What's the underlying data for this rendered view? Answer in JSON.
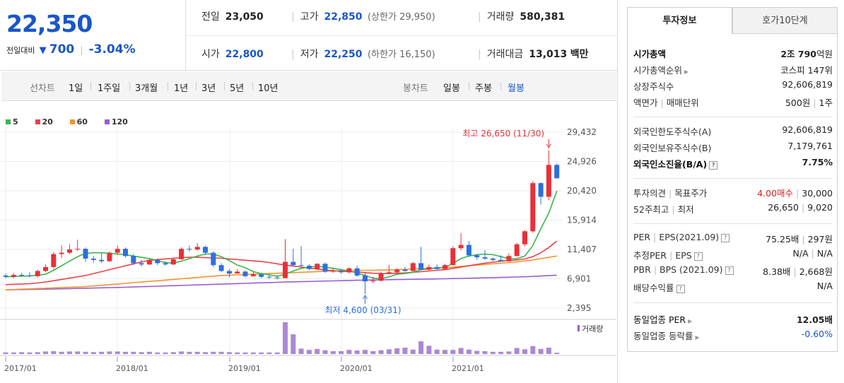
{
  "quote": {
    "price": "22,350",
    "change_label": "전일대비",
    "change_dir_icon": "down-triangle-icon",
    "change_amount": "700",
    "change_pct": "-3.04%",
    "prev_close": {
      "label": "전일",
      "value": "23,050"
    },
    "high": {
      "label": "고가",
      "value": "22,850",
      "limit_label": "상한가",
      "limit_value": "29,950"
    },
    "volume": {
      "label": "거래량",
      "value": "580,381"
    },
    "open": {
      "label": "시가",
      "value": "22,800"
    },
    "low": {
      "label": "저가",
      "value": "22,250",
      "limit_label": "하한가",
      "limit_value": "16,150"
    },
    "trade_value": {
      "label": "거래대금",
      "value": "13,013",
      "unit": "백만"
    }
  },
  "period_bar": {
    "line_chart_label": "선차트",
    "line_periods": [
      "1일",
      "1주일",
      "3개월",
      "1년",
      "3년",
      "5년",
      "10년"
    ],
    "candle_chart_label": "봉차트",
    "candle_periods": [
      "일봉",
      "주봉",
      "월봉"
    ],
    "selected_candle": "월봉"
  },
  "chart_data": {
    "type": "candlestick",
    "title": "",
    "legend": [
      {
        "name": "5",
        "color": "#3cb44b"
      },
      {
        "name": "20",
        "color": "#e8434a"
      },
      {
        "name": "60",
        "color": "#f19532"
      },
      {
        "name": "120",
        "color": "#9a5fcd"
      }
    ],
    "y_ticks": [
      "29,432",
      "24,926",
      "20,420",
      "15,914",
      "11,407",
      "6,901",
      "2,395"
    ],
    "ylim": [
      2395,
      29432
    ],
    "x_ticks": [
      "2017/01",
      "2018/01",
      "2019/01",
      "2020/01",
      "2021/01"
    ],
    "max_annotation": "최고 26,650 (11/30)",
    "min_annotation": "최저 4,600 (03/31)",
    "volume_label": "거래량",
    "up_color": "#e8303a",
    "down_color": "#2d6fe0",
    "candles": [
      [
        7400,
        7200,
        7700,
        7000
      ],
      [
        7200,
        7500,
        7800,
        7000
      ],
      [
        7500,
        7400,
        7800,
        7200
      ],
      [
        7400,
        7300,
        7900,
        7100
      ],
      [
        7300,
        8100,
        8300,
        7100
      ],
      [
        8100,
        8700,
        9100,
        7900
      ],
      [
        8700,
        10700,
        11000,
        8400
      ],
      [
        10700,
        10900,
        12000,
        10100
      ],
      [
        10900,
        11400,
        12200,
        10700
      ],
      [
        11400,
        11500,
        12900,
        11200
      ],
      [
        11500,
        10000,
        11700,
        9500
      ],
      [
        10000,
        9800,
        10400,
        9400
      ],
      [
        9800,
        9600,
        10800,
        9300
      ],
      [
        9600,
        10900,
        11100,
        9500
      ],
      [
        10900,
        11500,
        12000,
        10600
      ],
      [
        11500,
        10400,
        11700,
        10200
      ],
      [
        10400,
        9300,
        10700,
        9000
      ],
      [
        9300,
        9100,
        9800,
        8800
      ],
      [
        9100,
        9800,
        10100,
        9000
      ],
      [
        9800,
        9300,
        10000,
        9000
      ],
      [
        9300,
        9100,
        9600,
        8900
      ],
      [
        9100,
        9900,
        10100,
        9000
      ],
      [
        9900,
        11500,
        11700,
        9800
      ],
      [
        11500,
        11400,
        12000,
        11100
      ],
      [
        11400,
        11800,
        12400,
        11200
      ],
      [
        11800,
        10900,
        12000,
        10600
      ],
      [
        10900,
        9000,
        11100,
        8700
      ],
      [
        9000,
        8100,
        9300,
        7900
      ],
      [
        8100,
        7700,
        8400,
        7100
      ],
      [
        7700,
        8000,
        8400,
        7700
      ],
      [
        8000,
        7300,
        8200,
        7100
      ],
      [
        7300,
        7600,
        8000,
        7200
      ],
      [
        7600,
        7200,
        7800,
        7000
      ],
      [
        7200,
        7100,
        7500,
        6900
      ],
      [
        7100,
        7000,
        7300,
        6800
      ],
      [
        7000,
        9500,
        13000,
        7000
      ],
      [
        9500,
        9000,
        11500,
        8800
      ],
      [
        9000,
        8900,
        11900,
        8700
      ],
      [
        8900,
        8400,
        9100,
        8200
      ],
      [
        8400,
        9200,
        9300,
        8200
      ],
      [
        9200,
        8000,
        9400,
        7800
      ],
      [
        8000,
        8100,
        8600,
        7800
      ],
      [
        8100,
        7900,
        8400,
        7700
      ],
      [
        7900,
        8500,
        8700,
        7700
      ],
      [
        8500,
        7400,
        8900,
        7200
      ],
      [
        7400,
        6500,
        7800,
        4600
      ],
      [
        6500,
        6600,
        7200,
        6200
      ],
      [
        6600,
        7700,
        8000,
        6500
      ],
      [
        7700,
        7900,
        9000,
        7600
      ],
      [
        7900,
        8300,
        8500,
        7600
      ],
      [
        8300,
        8100,
        8700,
        8000
      ],
      [
        8100,
        9300,
        9500,
        8000
      ],
      [
        9300,
        8300,
        11800,
        8200
      ],
      [
        8300,
        8700,
        9100,
        8200
      ],
      [
        8700,
        8400,
        9100,
        8300
      ],
      [
        8400,
        9000,
        9200,
        8300
      ],
      [
        9000,
        11600,
        11900,
        8900
      ],
      [
        11600,
        12100,
        13900,
        11300
      ],
      [
        12100,
        10500,
        12700,
        10300
      ],
      [
        10500,
        10200,
        10700,
        9800
      ],
      [
        10200,
        10000,
        11300,
        9800
      ],
      [
        10000,
        9800,
        10200,
        9600
      ],
      [
        9800,
        9600,
        10500,
        9500
      ],
      [
        9600,
        10400,
        10800,
        9500
      ],
      [
        10400,
        12200,
        12400,
        10300
      ],
      [
        12200,
        14200,
        14400,
        11900
      ],
      [
        14200,
        21600,
        21900,
        14000
      ],
      [
        21600,
        19500,
        21700,
        18300
      ],
      [
        19500,
        24400,
        26650,
        19000
      ],
      [
        24400,
        22350,
        24600,
        22250
      ]
    ],
    "volume_heights": [
      0.05,
      0.05,
      0.06,
      0.05,
      0.06,
      0.08,
      0.09,
      0.07,
      0.08,
      0.08,
      0.07,
      0.06,
      0.07,
      0.08,
      0.08,
      0.07,
      0.07,
      0.06,
      0.07,
      0.05,
      0.05,
      0.06,
      0.08,
      0.07,
      0.07,
      0.06,
      0.07,
      0.07,
      0.06,
      0.05,
      0.05,
      0.05,
      0.05,
      0.05,
      0.05,
      1.0,
      0.62,
      0.17,
      0.13,
      0.16,
      0.12,
      0.09,
      0.09,
      0.13,
      0.11,
      0.13,
      0.09,
      0.12,
      0.15,
      0.18,
      0.2,
      0.14,
      0.4,
      0.26,
      0.14,
      0.13,
      0.13,
      0.19,
      0.14,
      0.1,
      0.09,
      0.07,
      0.07,
      0.08,
      0.19,
      0.15,
      0.25,
      0.16,
      0.2,
      0.04
    ],
    "ma5": [
      7200,
      7250,
      7300,
      7350,
      7450,
      7600,
      8200,
      8900,
      9600,
      10300,
      10800,
      10900,
      10900,
      10800,
      10700,
      10600,
      10400,
      10200,
      10000,
      9700,
      9400,
      9300,
      9600,
      10000,
      10400,
      10700,
      10700,
      10300,
      9700,
      9000,
      8600,
      8000,
      7700,
      7500,
      7300,
      7600,
      8100,
      8500,
      8700,
      8800,
      8700,
      8500,
      8300,
      8100,
      7800,
      7400,
      7000,
      6900,
      7200,
      7600,
      7700,
      7900,
      8300,
      8400,
      8600,
      8600,
      9300,
      10000,
      10400,
      10600,
      10700,
      10600,
      10300,
      10000,
      10000,
      10400,
      12000,
      14600,
      17000,
      20400
    ],
    "ma20": [
      6000,
      6050,
      6100,
      6150,
      6250,
      6400,
      6600,
      6800,
      7000,
      7200,
      7400,
      7700,
      8000,
      8300,
      8600,
      8900,
      9200,
      9500,
      9700,
      9850,
      9950,
      10050,
      10150,
      10200,
      10200,
      10150,
      10100,
      10050,
      9950,
      9850,
      9750,
      9650,
      9550,
      9400,
      9200,
      9000,
      8850,
      8700,
      8550,
      8400,
      8250,
      8150,
      8050,
      8000,
      7950,
      7850,
      7750,
      7700,
      7700,
      7750,
      7800,
      7900,
      8000,
      8100,
      8200,
      8300,
      8500,
      8700,
      8900,
      9100,
      9300,
      9450,
      9600,
      9700,
      9800,
      9950,
      10300,
      10900,
      11700,
      12700
    ],
    "ma60": [
      5200,
      5250,
      5300,
      5350,
      5400,
      5450,
      5500,
      5550,
      5600,
      5650,
      5700,
      5800,
      5900,
      6000,
      6100,
      6200,
      6300,
      6400,
      6500,
      6600,
      6700,
      6800,
      6900,
      7000,
      7100,
      7200,
      7300,
      7400,
      7450,
      7500,
      7550,
      7600,
      7650,
      7700,
      7750,
      7800,
      7850,
      7900,
      7950,
      8000,
      8050,
      8100,
      8150,
      8200,
      8200,
      8200,
      8200,
      8250,
      8250,
      8300,
      8350,
      8400,
      8450,
      8500,
      8550,
      8600,
      8700,
      8800,
      8900,
      9000,
      9100,
      9200,
      9300,
      9400,
      9500,
      9650,
      9800,
      10000,
      10200,
      10400
    ],
    "ma120": [
      5200,
      5220,
      5240,
      5260,
      5280,
      5300,
      5330,
      5360,
      5390,
      5420,
      5450,
      5480,
      5510,
      5540,
      5570,
      5600,
      5640,
      5680,
      5720,
      5760,
      5800,
      5840,
      5880,
      5920,
      5960,
      6000,
      6040,
      6080,
      6120,
      6160,
      6200,
      6240,
      6280,
      6320,
      6360,
      6400,
      6430,
      6460,
      6490,
      6520,
      6550,
      6580,
      6610,
      6640,
      6670,
      6700,
      6720,
      6740,
      6760,
      6780,
      6800,
      6820,
      6840,
      6860,
      6880,
      6900,
      6930,
      6960,
      6990,
      7020,
      7050,
      7080,
      7110,
      7140,
      7170,
      7200,
      7260,
      7320,
      7380,
      7450
    ]
  },
  "tabs": [
    "투자정보",
    "호가10단계"
  ],
  "info": {
    "market_cap": {
      "label": "시가총액",
      "value_bold": "2조 790",
      "unit": "억원"
    },
    "market_cap_rank": {
      "label": "시가총액순위",
      "value": "코스피 147위"
    },
    "shares_listed": {
      "label": "상장주식수",
      "value": "92,606,819"
    },
    "face_value": {
      "label_a": "액면가",
      "label_b": "매매단위",
      "value_a": "500원",
      "value_b": "1주"
    },
    "foreign_limit": {
      "label": "외국인한도주식수(A)",
      "value": "92,606,819"
    },
    "foreign_hold": {
      "label": "외국인보유주식수(B)",
      "value": "7,179,761"
    },
    "foreign_ratio": {
      "label": "외국인소진율(B/A)",
      "value": "7.75%"
    },
    "opinion": {
      "label_a": "투자의견",
      "label_b": "목표주가",
      "value_a": "4.00매수",
      "value_b": "30,000"
    },
    "week52": {
      "label_a": "52주최고",
      "label_b": "최저",
      "value_a": "26,650",
      "value_b": "9,020"
    },
    "per": {
      "label_a": "PER",
      "label_b": "EPS(2021.09)",
      "value_a": "75.25배",
      "value_b": "297원"
    },
    "est_per": {
      "label_a": "추정PER",
      "label_b": "EPS",
      "value_a": "N/A",
      "value_b": "N/A"
    },
    "pbr": {
      "label_a": "PBR",
      "label_b": "BPS (2021.09)",
      "value_a": "8.38배",
      "value_b": "2,668원"
    },
    "dividend": {
      "label": "배당수익률",
      "value": "N/A"
    },
    "industry_per": {
      "label": "동일업종 PER",
      "value": "12.05배"
    },
    "industry_chg": {
      "label": "동일업종 등락률",
      "value": "-0.60%"
    }
  }
}
